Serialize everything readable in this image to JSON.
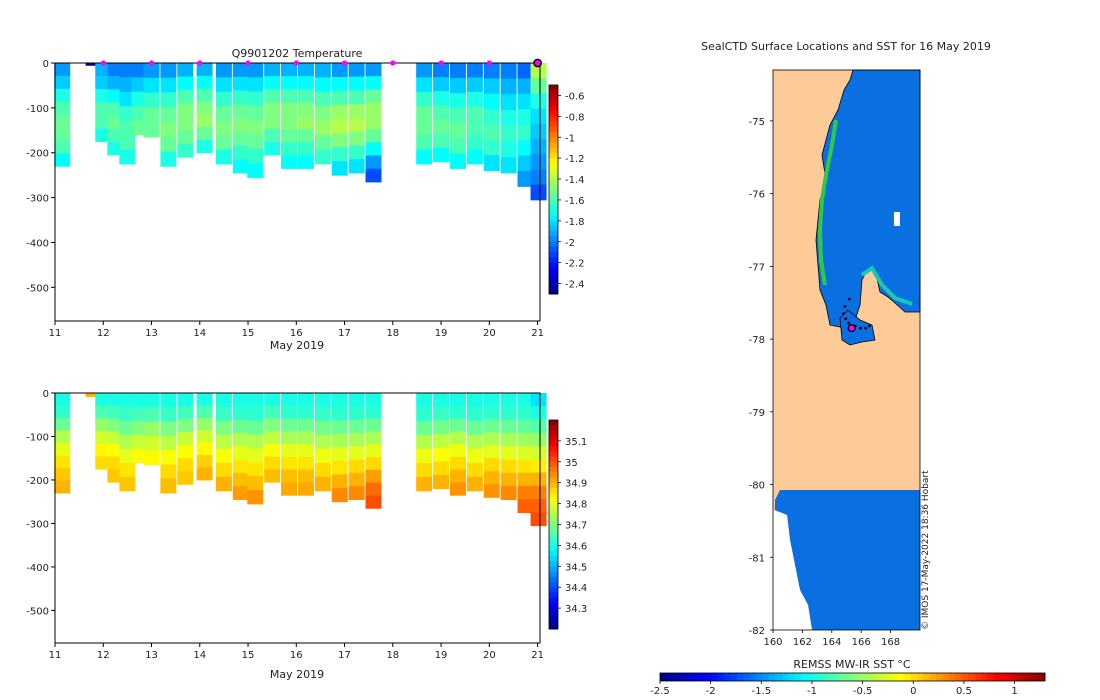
{
  "colors": {
    "land": "#fccb97",
    "ocean": "#0a6fe0",
    "marker_magenta": "#ff00ff",
    "coast": "#000000"
  },
  "chart_data": [
    {
      "id": "temperature",
      "type": "heatmap",
      "title": "Q9901202  Temperature",
      "xlabel": "May 2019",
      "ylabel": "",
      "x_ticks": [
        "11",
        "12",
        "13",
        "14",
        "15",
        "16",
        "17",
        "18",
        "19",
        "20",
        "21"
      ],
      "x_range": [
        11,
        21.05
      ],
      "y_ticks": [
        "0",
        "-100",
        "-200",
        "-300",
        "-400",
        "-500"
      ],
      "y_range": [
        -575,
        0
      ],
      "colorbar": {
        "ticks": [
          "-0.6",
          "-0.8",
          "-1",
          "-1.2",
          "-1.4",
          "-1.6",
          "-1.8",
          "-2",
          "-2.2",
          "-2.4"
        ],
        "range": [
          -2.5,
          -0.5
        ],
        "colormap": "jet"
      },
      "marker_days": [
        12,
        13,
        14,
        15,
        16,
        17,
        18,
        19,
        20
      ],
      "profiles": [
        {
          "day": 11.15,
          "bottom": -230,
          "levels": [
            -1.95,
            -1.85,
            -1.7,
            -1.6,
            -1.55,
            -1.55,
            -1.6,
            -1.75
          ]
        },
        {
          "day": 11.8,
          "bottom": -5,
          "levels": [
            -2.45
          ]
        },
        {
          "day": 12.0,
          "bottom": -175,
          "levels": [
            -1.9,
            -1.85,
            -1.7,
            -1.6,
            -1.6,
            -1.7
          ]
        },
        {
          "day": 12.25,
          "bottom": -205,
          "levels": [
            -2.0,
            -1.9,
            -1.75,
            -1.6,
            -1.55,
            -1.6,
            -1.7
          ]
        },
        {
          "day": 12.5,
          "bottom": -225,
          "levels": [
            -2.0,
            -1.9,
            -1.8,
            -1.65,
            -1.6,
            -1.6,
            -1.7
          ]
        },
        {
          "day": 12.75,
          "bottom": -160,
          "levels": [
            -2.0,
            -1.85,
            -1.7,
            -1.6,
            -1.55
          ]
        },
        {
          "day": 13.0,
          "bottom": -165,
          "levels": [
            -1.95,
            -1.8,
            -1.65,
            -1.55,
            -1.55
          ]
        },
        {
          "day": 13.35,
          "bottom": -230,
          "levels": [
            -1.95,
            -1.8,
            -1.65,
            -1.55,
            -1.5,
            -1.55,
            -1.7
          ]
        },
        {
          "day": 13.7,
          "bottom": -210,
          "levels": [
            -1.9,
            -1.75,
            -1.6,
            -1.5,
            -1.5,
            -1.55,
            -1.65
          ]
        },
        {
          "day": 14.1,
          "bottom": -200,
          "levels": [
            -1.9,
            -1.75,
            -1.6,
            -1.5,
            -1.45,
            -1.55,
            -1.7
          ]
        },
        {
          "day": 14.5,
          "bottom": -225,
          "levels": [
            -1.95,
            -1.8,
            -1.65,
            -1.55,
            -1.5,
            -1.55,
            -1.7
          ]
        },
        {
          "day": 14.85,
          "bottom": -245,
          "levels": [
            -1.95,
            -1.8,
            -1.65,
            -1.55,
            -1.5,
            -1.55,
            -1.65,
            -1.75
          ]
        },
        {
          "day": 15.15,
          "bottom": -255,
          "levels": [
            -1.95,
            -1.8,
            -1.65,
            -1.55,
            -1.5,
            -1.55,
            -1.65,
            -1.75
          ]
        },
        {
          "day": 15.5,
          "bottom": -205,
          "levels": [
            -1.9,
            -1.75,
            -1.6,
            -1.5,
            -1.5,
            -1.6,
            -1.7
          ]
        },
        {
          "day": 15.85,
          "bottom": -235,
          "levels": [
            -1.9,
            -1.75,
            -1.6,
            -1.5,
            -1.5,
            -1.55,
            -1.65,
            -1.75
          ]
        },
        {
          "day": 16.2,
          "bottom": -235,
          "levels": [
            -1.9,
            -1.75,
            -1.6,
            -1.5,
            -1.45,
            -1.55,
            -1.65,
            -1.75
          ]
        },
        {
          "day": 16.55,
          "bottom": -225,
          "levels": [
            -1.9,
            -1.75,
            -1.6,
            -1.5,
            -1.45,
            -1.55,
            -1.65
          ]
        },
        {
          "day": 16.9,
          "bottom": -250,
          "levels": [
            -1.95,
            -1.75,
            -1.6,
            -1.45,
            -1.4,
            -1.5,
            -1.65,
            -1.8
          ]
        },
        {
          "day": 17.25,
          "bottom": -245,
          "levels": [
            -1.95,
            -1.75,
            -1.6,
            -1.45,
            -1.4,
            -1.5,
            -1.65,
            -1.8
          ]
        },
        {
          "day": 17.6,
          "bottom": -265,
          "levels": [
            -1.95,
            -1.75,
            -1.55,
            -1.45,
            -1.45,
            -1.55,
            -1.75,
            -1.95,
            -2.1
          ]
        },
        {
          "day": 18.65,
          "bottom": -225,
          "levels": [
            -1.95,
            -1.8,
            -1.65,
            -1.55,
            -1.55,
            -1.6,
            -1.75
          ]
        },
        {
          "day": 19.0,
          "bottom": -220,
          "levels": [
            -2.0,
            -1.85,
            -1.7,
            -1.6,
            -1.55,
            -1.6,
            -1.75
          ]
        },
        {
          "day": 19.35,
          "bottom": -235,
          "levels": [
            -2.0,
            -1.85,
            -1.7,
            -1.6,
            -1.55,
            -1.6,
            -1.75
          ]
        },
        {
          "day": 19.7,
          "bottom": -225,
          "levels": [
            -2.0,
            -1.85,
            -1.7,
            -1.6,
            -1.6,
            -1.65,
            -1.75
          ]
        },
        {
          "day": 20.05,
          "bottom": -240,
          "levels": [
            -2.0,
            -1.85,
            -1.75,
            -1.65,
            -1.6,
            -1.65,
            -1.8
          ]
        },
        {
          "day": 20.4,
          "bottom": -245,
          "levels": [
            -2.0,
            -1.9,
            -1.8,
            -1.7,
            -1.65,
            -1.7,
            -1.8
          ]
        },
        {
          "day": 20.75,
          "bottom": -275,
          "levels": [
            -2.05,
            -1.9,
            -1.8,
            -1.7,
            -1.65,
            -1.75,
            -1.85,
            -1.95
          ]
        },
        {
          "day": 21.02,
          "bottom": -305,
          "levels": [
            -1.4,
            -1.55,
            -1.7,
            -1.8,
            -1.85,
            -1.9,
            -1.95,
            -2.0,
            -2.1
          ]
        }
      ]
    },
    {
      "id": "salinity",
      "type": "heatmap",
      "title": "",
      "xlabel": "May 2019",
      "ylabel": "",
      "x_ticks": [
        "11",
        "12",
        "13",
        "14",
        "15",
        "16",
        "17",
        "18",
        "19",
        "20",
        "21"
      ],
      "x_range": [
        11,
        21.05
      ],
      "y_ticks": [
        "0",
        "-100",
        "-200",
        "-300",
        "-400",
        "-500"
      ],
      "y_range": [
        -575,
        0
      ],
      "colorbar": {
        "ticks": [
          "35.1",
          "35",
          "34.9",
          "34.8",
          "34.7",
          "34.6",
          "34.5",
          "34.4",
          "34.3"
        ],
        "range": [
          34.2,
          35.2
        ],
        "colormap": "jet"
      },
      "profiles": [
        {
          "day": 11.15,
          "bottom": -230,
          "levels": [
            34.6,
            34.62,
            34.68,
            34.75,
            34.8,
            34.85,
            34.88,
            34.9
          ]
        },
        {
          "day": 11.8,
          "bottom": -8,
          "levels": [
            34.9
          ]
        },
        {
          "day": 12.0,
          "bottom": -175,
          "levels": [
            34.6,
            34.65,
            34.72,
            34.78,
            34.83,
            34.86
          ]
        },
        {
          "day": 12.25,
          "bottom": -205,
          "levels": [
            34.6,
            34.64,
            34.7,
            34.77,
            34.82,
            34.86,
            34.88
          ]
        },
        {
          "day": 12.5,
          "bottom": -225,
          "levels": [
            34.6,
            34.63,
            34.68,
            34.75,
            34.8,
            34.85,
            34.88
          ]
        },
        {
          "day": 12.75,
          "bottom": -160,
          "levels": [
            34.6,
            34.64,
            34.7,
            34.77,
            34.82
          ]
        },
        {
          "day": 13.0,
          "bottom": -165,
          "levels": [
            34.6,
            34.65,
            34.72,
            34.78,
            34.83
          ]
        },
        {
          "day": 13.35,
          "bottom": -230,
          "levels": [
            34.6,
            34.63,
            34.7,
            34.76,
            34.82,
            34.86,
            34.89
          ]
        },
        {
          "day": 13.7,
          "bottom": -210,
          "levels": [
            34.6,
            34.64,
            34.7,
            34.77,
            34.82,
            34.86,
            34.88
          ]
        },
        {
          "day": 14.1,
          "bottom": -200,
          "levels": [
            34.6,
            34.65,
            34.72,
            34.78,
            34.83,
            34.87,
            34.9
          ]
        },
        {
          "day": 14.5,
          "bottom": -225,
          "levels": [
            34.6,
            34.63,
            34.7,
            34.76,
            34.82,
            34.86,
            34.9
          ]
        },
        {
          "day": 14.85,
          "bottom": -245,
          "levels": [
            34.6,
            34.62,
            34.68,
            34.75,
            34.8,
            34.85,
            34.89,
            34.92
          ]
        },
        {
          "day": 15.15,
          "bottom": -255,
          "levels": [
            34.6,
            34.62,
            34.68,
            34.75,
            34.8,
            34.85,
            34.89,
            34.93
          ]
        },
        {
          "day": 15.5,
          "bottom": -205,
          "levels": [
            34.6,
            34.64,
            34.7,
            34.76,
            34.82,
            34.86,
            34.89
          ]
        },
        {
          "day": 15.85,
          "bottom": -235,
          "levels": [
            34.6,
            34.62,
            34.68,
            34.74,
            34.8,
            34.85,
            34.89,
            34.91
          ]
        },
        {
          "day": 16.2,
          "bottom": -235,
          "levels": [
            34.6,
            34.62,
            34.68,
            34.74,
            34.8,
            34.85,
            34.89,
            34.91
          ]
        },
        {
          "day": 16.55,
          "bottom": -225,
          "levels": [
            34.6,
            34.63,
            34.69,
            34.75,
            34.81,
            34.86,
            34.9
          ]
        },
        {
          "day": 16.9,
          "bottom": -250,
          "levels": [
            34.6,
            34.62,
            34.68,
            34.74,
            34.8,
            34.85,
            34.9,
            34.94
          ]
        },
        {
          "day": 17.25,
          "bottom": -245,
          "levels": [
            34.6,
            34.62,
            34.68,
            34.74,
            34.8,
            34.86,
            34.9,
            34.94
          ]
        },
        {
          "day": 17.6,
          "bottom": -265,
          "levels": [
            34.6,
            34.62,
            34.68,
            34.74,
            34.8,
            34.86,
            34.92,
            34.97,
            35.0
          ]
        },
        {
          "day": 18.65,
          "bottom": -225,
          "levels": [
            34.6,
            34.62,
            34.68,
            34.75,
            34.81,
            34.86,
            34.9
          ]
        },
        {
          "day": 19.0,
          "bottom": -220,
          "levels": [
            34.6,
            34.63,
            34.69,
            34.76,
            34.82,
            34.86,
            34.9
          ]
        },
        {
          "day": 19.35,
          "bottom": -235,
          "levels": [
            34.6,
            34.62,
            34.68,
            34.75,
            34.81,
            34.86,
            34.9,
            34.93
          ]
        },
        {
          "day": 19.7,
          "bottom": -225,
          "levels": [
            34.6,
            34.62,
            34.68,
            34.75,
            34.81,
            34.86,
            34.9
          ]
        },
        {
          "day": 20.05,
          "bottom": -240,
          "levels": [
            34.6,
            34.62,
            34.68,
            34.74,
            34.8,
            34.86,
            34.9,
            34.93
          ]
        },
        {
          "day": 20.4,
          "bottom": -245,
          "levels": [
            34.6,
            34.62,
            34.68,
            34.74,
            34.8,
            34.86,
            34.9,
            34.94
          ]
        },
        {
          "day": 20.75,
          "bottom": -275,
          "levels": [
            34.6,
            34.62,
            34.67,
            34.73,
            34.79,
            34.85,
            34.9,
            34.95,
            34.98
          ]
        },
        {
          "day": 21.02,
          "bottom": -305,
          "levels": [
            34.55,
            34.6,
            34.66,
            34.72,
            34.78,
            34.84,
            34.9,
            34.95,
            34.98,
            35.0
          ]
        }
      ]
    },
    {
      "id": "sst_map",
      "type": "heatmap",
      "title": "SealCTD Surface Locations and SST for 16 May 2019",
      "xlabel": "",
      "ylabel": "",
      "x_ticks": [
        "160",
        "162",
        "164",
        "166",
        "168"
      ],
      "x_range": [
        160,
        170
      ],
      "y_ticks": [
        "-75",
        "-76",
        "-77",
        "-78",
        "-79",
        "-80",
        "-81",
        "-82"
      ],
      "y_range": [
        -82,
        -74.3
      ],
      "colorbar": {
        "label": "REMSS MW-IR SST °C",
        "ticks": [
          "-2.5",
          "-2",
          "-1.5",
          "-1",
          "-0.5",
          "0",
          "0.5",
          "1"
        ],
        "range": [
          -2.5,
          1.3
        ],
        "colormap": "jet"
      },
      "annotation": "© IMOS 17-May-2022 18:36 Hobart",
      "track": [
        {
          "lon": 165.2,
          "lat": -77.45
        },
        {
          "lon": 164.9,
          "lat": -77.55
        },
        {
          "lon": 164.8,
          "lat": -77.65
        },
        {
          "lon": 164.95,
          "lat": -77.72
        },
        {
          "lon": 165.15,
          "lat": -77.78
        },
        {
          "lon": 165.6,
          "lat": -77.82
        },
        {
          "lon": 165.95,
          "lat": -77.85
        },
        {
          "lon": 166.3,
          "lat": -77.85
        },
        {
          "lon": 166.55,
          "lat": -77.82
        }
      ],
      "current_position": {
        "lon": 165.35,
        "lat": -77.85
      }
    }
  ]
}
